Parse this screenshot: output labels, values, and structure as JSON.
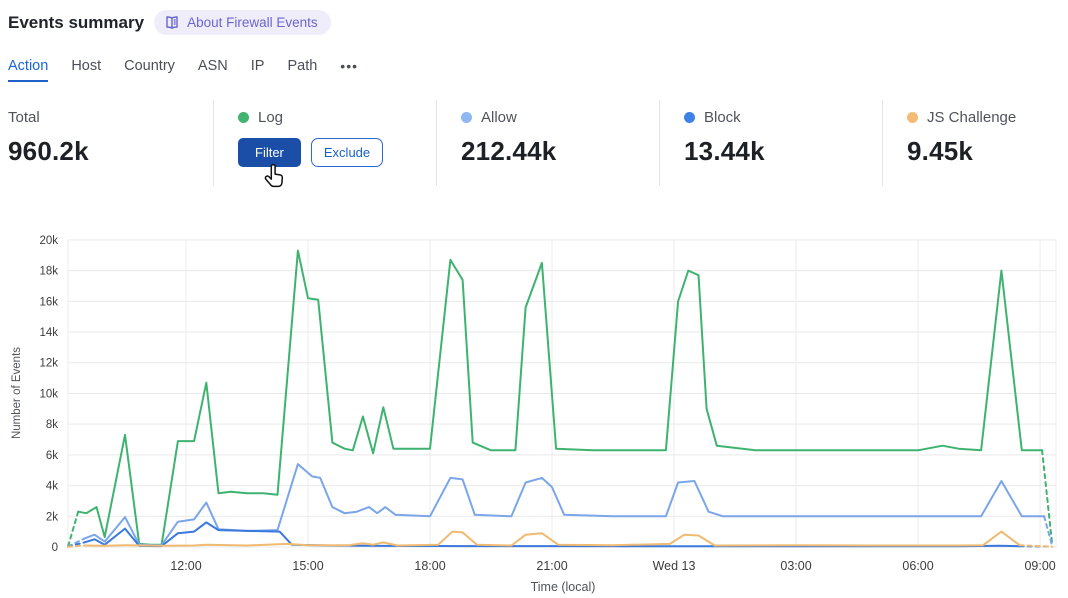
{
  "header": {
    "title": "Events summary",
    "about_badge": "About Firewall Events"
  },
  "tabs": {
    "items": [
      {
        "label": "Action",
        "active": true
      },
      {
        "label": "Host",
        "active": false
      },
      {
        "label": "Country",
        "active": false
      },
      {
        "label": "ASN",
        "active": false
      },
      {
        "label": "IP",
        "active": false
      },
      {
        "label": "Path",
        "active": false
      }
    ],
    "more_label": "•••"
  },
  "stats": {
    "total": {
      "label": "Total",
      "value": "960.2k"
    },
    "cards": [
      {
        "label": "Log",
        "color": "#41b570",
        "value": "",
        "hovered": true,
        "filter_label": "Filter",
        "exclude_label": "Exclude"
      },
      {
        "label": "Allow",
        "color": "#8fb8f2",
        "value": "212.44k"
      },
      {
        "label": "Block",
        "color": "#3e82e8",
        "value": "13.44k"
      },
      {
        "label": "JS Challenge",
        "color": "#f2bc74",
        "value": "9.45k"
      }
    ]
  },
  "chart_data": {
    "type": "line",
    "xlabel": "Time (local)",
    "ylabel": "Number of Events",
    "ylim": [
      0,
      20000
    ],
    "grid": true,
    "legend_position": "stat cards above chart",
    "y_ticks": [
      "0",
      "2k",
      "4k",
      "6k",
      "8k",
      "10k",
      "12k",
      "14k",
      "16k",
      "18k",
      "20k"
    ],
    "x_ticks": [
      {
        "t": 3,
        "label": "12:00"
      },
      {
        "t": 6,
        "label": "15:00"
      },
      {
        "t": 9,
        "label": "18:00"
      },
      {
        "t": 12,
        "label": "21:00"
      },
      {
        "t": 15,
        "label": "Wed 13"
      },
      {
        "t": 18,
        "label": "03:00"
      },
      {
        "t": 21,
        "label": "06:00"
      },
      {
        "t": 24,
        "label": "09:00"
      }
    ],
    "x_unit": "hours after 09:00 (ticks every 3h, day boundary at Wed 13 = 00:00)",
    "value_unit": "thousands of events",
    "note": "first and last segments of each series are dashed (partial time buckets)",
    "series": [
      {
        "name": "Log",
        "color": "#3eb370",
        "points": [
          [
            0.1,
            0.05
          ],
          [
            0.35,
            2.3
          ],
          [
            0.55,
            2.2
          ],
          [
            0.8,
            2.6
          ],
          [
            1.0,
            0.65
          ],
          [
            1.5,
            7.3
          ],
          [
            1.85,
            0.2
          ],
          [
            2.15,
            0.15
          ],
          [
            2.4,
            0.15
          ],
          [
            2.8,
            6.9
          ],
          [
            3.2,
            6.9
          ],
          [
            3.5,
            10.7
          ],
          [
            3.8,
            3.5
          ],
          [
            4.1,
            3.6
          ],
          [
            4.5,
            3.5
          ],
          [
            4.9,
            3.5
          ],
          [
            5.25,
            3.4
          ],
          [
            5.75,
            19.3
          ],
          [
            6.0,
            16.2
          ],
          [
            6.25,
            16.1
          ],
          [
            6.6,
            6.8
          ],
          [
            6.9,
            6.4
          ],
          [
            7.1,
            6.3
          ],
          [
            7.35,
            8.5
          ],
          [
            7.6,
            6.1
          ],
          [
            7.85,
            9.1
          ],
          [
            8.1,
            6.4
          ],
          [
            8.5,
            6.4
          ],
          [
            9.0,
            6.4
          ],
          [
            9.5,
            18.7
          ],
          [
            9.8,
            17.4
          ],
          [
            10.05,
            6.8
          ],
          [
            10.5,
            6.3
          ],
          [
            11.1,
            6.3
          ],
          [
            11.35,
            15.6
          ],
          [
            11.75,
            18.5
          ],
          [
            12.1,
            6.4
          ],
          [
            13.0,
            6.3
          ],
          [
            14.0,
            6.3
          ],
          [
            14.8,
            6.3
          ],
          [
            15.1,
            16.0
          ],
          [
            15.35,
            18.0
          ],
          [
            15.6,
            17.7
          ],
          [
            15.8,
            9.0
          ],
          [
            16.05,
            6.6
          ],
          [
            17.0,
            6.3
          ],
          [
            18.0,
            6.3
          ],
          [
            19.0,
            6.3
          ],
          [
            20.0,
            6.3
          ],
          [
            21.0,
            6.3
          ],
          [
            21.6,
            6.6
          ],
          [
            22.0,
            6.4
          ],
          [
            22.55,
            6.3
          ],
          [
            23.05,
            18.0
          ],
          [
            23.55,
            6.3
          ],
          [
            24.05,
            6.3
          ],
          [
            24.3,
            0.1
          ]
        ]
      },
      {
        "name": "Allow",
        "color": "#7aa6e9",
        "points": [
          [
            0.1,
            0.03
          ],
          [
            0.5,
            0.55
          ],
          [
            0.75,
            0.8
          ],
          [
            1.0,
            0.35
          ],
          [
            1.5,
            1.95
          ],
          [
            1.85,
            0.15
          ],
          [
            2.4,
            0.12
          ],
          [
            2.8,
            1.65
          ],
          [
            3.2,
            1.8
          ],
          [
            3.5,
            2.9
          ],
          [
            3.8,
            1.15
          ],
          [
            4.5,
            1.05
          ],
          [
            5.25,
            1.1
          ],
          [
            5.75,
            5.4
          ],
          [
            6.1,
            4.6
          ],
          [
            6.3,
            4.5
          ],
          [
            6.6,
            2.6
          ],
          [
            6.9,
            2.2
          ],
          [
            7.2,
            2.3
          ],
          [
            7.5,
            2.6
          ],
          [
            7.7,
            2.2
          ],
          [
            7.9,
            2.6
          ],
          [
            8.15,
            2.1
          ],
          [
            9.0,
            2.0
          ],
          [
            9.5,
            4.5
          ],
          [
            9.8,
            4.4
          ],
          [
            10.1,
            2.1
          ],
          [
            11.0,
            2.0
          ],
          [
            11.35,
            4.2
          ],
          [
            11.75,
            4.5
          ],
          [
            12.0,
            3.9
          ],
          [
            12.3,
            2.1
          ],
          [
            13.5,
            2.0
          ],
          [
            14.8,
            2.0
          ],
          [
            15.1,
            4.2
          ],
          [
            15.5,
            4.3
          ],
          [
            15.85,
            2.3
          ],
          [
            16.2,
            2.0
          ],
          [
            18.0,
            2.0
          ],
          [
            20.0,
            2.0
          ],
          [
            22.0,
            2.0
          ],
          [
            22.55,
            2.0
          ],
          [
            23.05,
            4.3
          ],
          [
            23.55,
            2.0
          ],
          [
            24.1,
            2.0
          ],
          [
            24.3,
            0.05
          ]
        ]
      },
      {
        "name": "Block",
        "color": "#3a79dd",
        "points": [
          [
            0.1,
            0.02
          ],
          [
            0.5,
            0.3
          ],
          [
            0.75,
            0.5
          ],
          [
            1.0,
            0.15
          ],
          [
            1.5,
            1.2
          ],
          [
            1.85,
            0.07
          ],
          [
            2.4,
            0.06
          ],
          [
            2.8,
            0.9
          ],
          [
            3.2,
            1.0
          ],
          [
            3.5,
            1.6
          ],
          [
            3.8,
            1.1
          ],
          [
            4.5,
            1.05
          ],
          [
            5.3,
            1.0
          ],
          [
            5.6,
            0.15
          ],
          [
            6.5,
            0.1
          ],
          [
            8.0,
            0.07
          ],
          [
            10.0,
            0.06
          ],
          [
            12.0,
            0.06
          ],
          [
            14.0,
            0.05
          ],
          [
            16.0,
            0.05
          ],
          [
            18.0,
            0.05
          ],
          [
            20.0,
            0.05
          ],
          [
            22.0,
            0.05
          ],
          [
            23.0,
            0.08
          ],
          [
            23.5,
            0.05
          ],
          [
            24.25,
            0.03
          ]
        ]
      },
      {
        "name": "JS Challenge",
        "color": "#f0ba70",
        "points": [
          [
            0.1,
            0.02
          ],
          [
            0.5,
            0.1
          ],
          [
            1.0,
            0.08
          ],
          [
            1.5,
            0.12
          ],
          [
            2.4,
            0.08
          ],
          [
            3.2,
            0.1
          ],
          [
            3.5,
            0.15
          ],
          [
            4.5,
            0.1
          ],
          [
            5.5,
            0.2
          ],
          [
            6.0,
            0.12
          ],
          [
            7.0,
            0.12
          ],
          [
            7.35,
            0.25
          ],
          [
            7.6,
            0.15
          ],
          [
            7.85,
            0.3
          ],
          [
            8.2,
            0.1
          ],
          [
            9.2,
            0.15
          ],
          [
            9.55,
            1.0
          ],
          [
            9.8,
            0.95
          ],
          [
            10.15,
            0.15
          ],
          [
            11.0,
            0.1
          ],
          [
            11.35,
            0.8
          ],
          [
            11.75,
            0.9
          ],
          [
            12.15,
            0.15
          ],
          [
            13.5,
            0.12
          ],
          [
            14.9,
            0.2
          ],
          [
            15.25,
            0.8
          ],
          [
            15.6,
            0.75
          ],
          [
            16.0,
            0.1
          ],
          [
            18.0,
            0.12
          ],
          [
            20.0,
            0.1
          ],
          [
            22.0,
            0.1
          ],
          [
            22.6,
            0.12
          ],
          [
            23.05,
            1.0
          ],
          [
            23.5,
            0.12
          ],
          [
            24.3,
            0.02
          ]
        ]
      }
    ]
  }
}
